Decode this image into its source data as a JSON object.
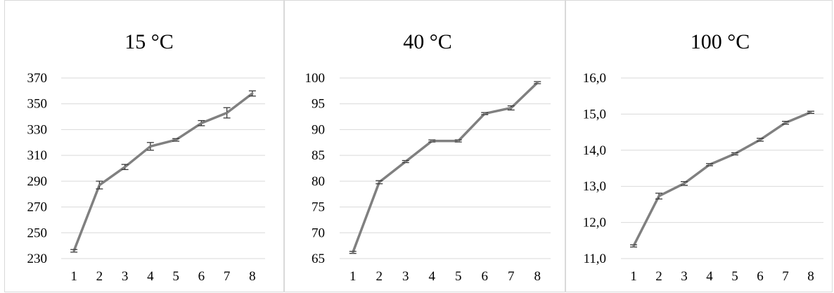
{
  "chart_data": [
    {
      "type": "line",
      "title": "15 °C",
      "categories": [
        "1",
        "2",
        "3",
        "4",
        "5",
        "6",
        "7",
        "8"
      ],
      "values": [
        236,
        287,
        301,
        317,
        322,
        335,
        343,
        358
      ],
      "errors": [
        1,
        3,
        2,
        3,
        1,
        2,
        4,
        2
      ],
      "ylim": [
        230,
        370
      ],
      "yticks": [
        230,
        250,
        270,
        290,
        310,
        330,
        350,
        370
      ],
      "ytick_labels": [
        "230",
        "250",
        "270",
        "290",
        "310",
        "330",
        "350",
        "370"
      ],
      "grid": true,
      "color": "#808080"
    },
    {
      "type": "line",
      "title": "40 °C",
      "categories": [
        "1",
        "2",
        "3",
        "4",
        "5",
        "6",
        "7",
        "8"
      ],
      "values": [
        66.2,
        79.8,
        83.8,
        87.8,
        87.8,
        93.1,
        94.2,
        99.1
      ],
      "errors": [
        0.2,
        0.3,
        0.2,
        0.2,
        0.2,
        0.2,
        0.4,
        0.2
      ],
      "ylim": [
        65,
        100
      ],
      "yticks": [
        65,
        70,
        75,
        80,
        85,
        90,
        95,
        100
      ],
      "ytick_labels": [
        "65",
        "70",
        "75",
        "80",
        "85",
        "90",
        "95",
        "100"
      ],
      "grid": true,
      "color": "#808080"
    },
    {
      "type": "line",
      "title": "100 °C",
      "categories": [
        "1",
        "2",
        "3",
        "4",
        "5",
        "6",
        "7",
        "8"
      ],
      "values": [
        11.35,
        12.73,
        13.08,
        13.6,
        13.9,
        14.29,
        14.76,
        15.05
      ],
      "errors": [
        0.03,
        0.08,
        0.05,
        0.03,
        0.03,
        0.04,
        0.04,
        0.03
      ],
      "ylim": [
        11.0,
        16.0
      ],
      "yticks": [
        11.0,
        12.0,
        13.0,
        14.0,
        15.0,
        16.0
      ],
      "ytick_labels": [
        "11,0",
        "12,0",
        "13,0",
        "14,0",
        "15,0",
        "16,0"
      ],
      "grid": true,
      "color": "#808080"
    }
  ]
}
